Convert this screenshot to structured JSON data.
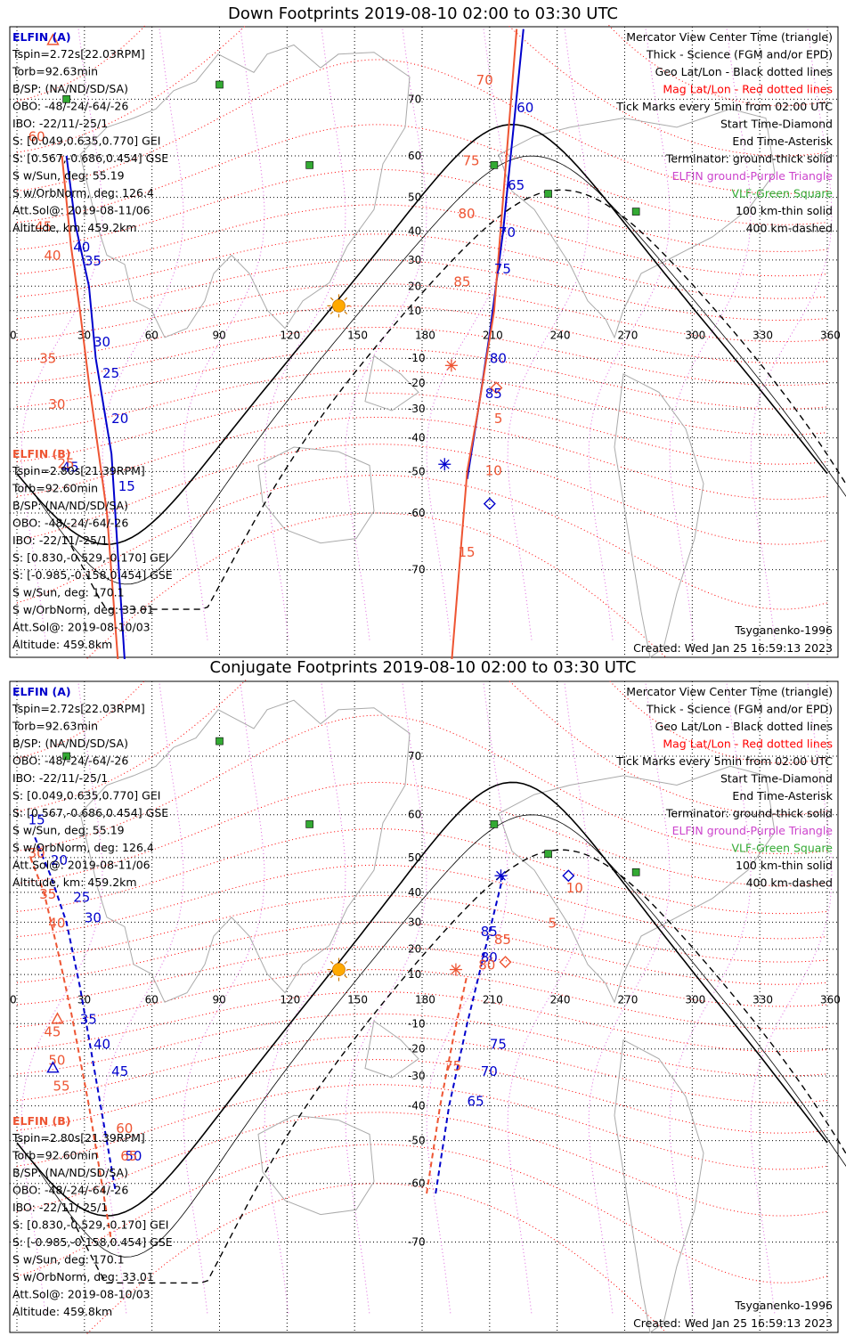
{
  "palette": {
    "spacecraft_a": "#0000cc",
    "spacecraft_b": "#ee5533",
    "mag_grid": "#ff0000",
    "geo_grid": "#000000",
    "elfin_ground": "#cc44cc",
    "vlf_station": "#33aa33",
    "sun": "#ffaa00",
    "terminator": "#000000",
    "coastline": "#aaaaaa"
  },
  "panels": [
    {
      "title": "Down Footprints 2019-08-10 02:00 to 03:30 UTC",
      "legend": [
        {
          "text": "Mercator View Center Time (triangle)",
          "color": "#000000"
        },
        {
          "text": "Thick - Science (FGM and/or EPD)",
          "color": "#000000"
        },
        {
          "text": "Geo Lat/Lon - Black dotted lines",
          "color": "#000000"
        },
        {
          "text": "Mag Lat/Lon - Red dotted lines",
          "color": "#ff0000"
        },
        {
          "text": "Tick Marks every 5min from 02:00 UTC",
          "color": "#000000"
        },
        {
          "text": "Start Time-Diamond",
          "color": "#000000"
        },
        {
          "text": "End Time-Asterisk",
          "color": "#000000"
        },
        {
          "text": "Terminator: ground-thick solid",
          "color": "#000000"
        },
        {
          "text": "ELFIN ground-Purple Triangle",
          "color": "#cc44cc"
        },
        {
          "text": "VLF-Green Square",
          "color": "#33aa33"
        },
        {
          "text": "100 km-thin solid",
          "color": "#000000"
        },
        {
          "text": "400 km-dashed",
          "color": "#000000"
        }
      ],
      "info_a": {
        "name": "ELFIN (A)",
        "lines": [
          "Tspin=2.72s[22.03RPM]",
          "Torb=92.63min",
          "B/SP: (NA/ND/SD/SA)",
          "OBO: -48/-24/-64/-26",
          "IBO: -22/11/-25/1",
          "S: [0.049,0.635,0.770] GEI",
          "S: [0.567,-0.686,0.454] GSE",
          "S w/Sun, deg: 55.19",
          "S w/OrbNorm, deg: 126.4",
          "Att.Sol@: 2019-08-11/06",
          "Altitude, km: 459.2km"
        ]
      },
      "info_b": {
        "name": "ELFIN (B)",
        "lines": [
          "Tspin=2.80s[21.39RPM]",
          "Torb=92.60min",
          "B/SP: (NA/ND/SD/SA)",
          "OBO: -48/-24/-64/-26",
          "IBO: -22/11/-25/1",
          "S: [0.830,-0.529,-0.170] GEI",
          "S: [-0.985,-0.158,0.454] GSE",
          "S w/Sun, deg: 170.1",
          "S w/OrbNorm, deg: 33.01",
          "Att.Sol@: 2019-08-10/03",
          "Altitude: 459.8km"
        ]
      },
      "model": "Tsyganenko-1996",
      "created": "Created: Wed Jan 25 16:59:13 2023",
      "segment_labels_a": [
        "60",
        "65",
        "70",
        "75",
        "80",
        "85",
        "45",
        "40",
        "35",
        "30",
        "25",
        "20",
        "15"
      ],
      "segment_labels_b": [
        "70",
        "75",
        "80",
        "85",
        "5",
        "10",
        "15",
        "60",
        "45",
        "40",
        "35",
        "30",
        "25"
      ]
    },
    {
      "title": "Conjugate Footprints 2019-08-10 02:00 to 03:30 UTC",
      "legend": [
        {
          "text": "Mercator View Center Time (triangle)",
          "color": "#000000"
        },
        {
          "text": "Thick - Science (FGM and/or EPD)",
          "color": "#000000"
        },
        {
          "text": "Geo Lat/Lon - Black dotted lines",
          "color": "#000000"
        },
        {
          "text": "Mag Lat/Lon - Red dotted lines",
          "color": "#ff0000"
        },
        {
          "text": "Tick Marks every 5min from 02:00 UTC",
          "color": "#000000"
        },
        {
          "text": "Start Time-Diamond",
          "color": "#000000"
        },
        {
          "text": "End Time-Asterisk",
          "color": "#000000"
        },
        {
          "text": "Terminator: ground-thick solid",
          "color": "#000000"
        },
        {
          "text": "ELFIN ground-Purple Triangle",
          "color": "#cc44cc"
        },
        {
          "text": "VLF-Green Square",
          "color": "#33aa33"
        },
        {
          "text": "100 km-thin solid",
          "color": "#000000"
        },
        {
          "text": "400 km-dashed",
          "color": "#000000"
        }
      ],
      "info_a": {
        "name": "ELFIN (A)",
        "lines": [
          "Tspin=2.72s[22.03RPM]",
          "Torb=92.63min",
          "B/SP: (NA/ND/SD/SA)",
          "OBO: -48/-24/-64/-26",
          "IBO: -22/11/-25/1",
          "S: [0.049,0.635,0.770] GEI",
          "S: [0.567,-0.686,0.454] GSE",
          "S w/Sun, deg: 55.19",
          "S w/OrbNorm, deg: 126.4",
          "Att.Sol@: 2019-08-11/06",
          "Altitude, km: 459.2km"
        ]
      },
      "info_b": {
        "name": "ELFIN (B)",
        "lines": [
          "Tspin=2.80s[21.39RPM]",
          "Torb=92.60min",
          "B/SP: (NA/ND/SD/SA)",
          "OBO: -48/-24/-64/-26",
          "IBO: -22/11/-25/1",
          "S: [0.830,-0.529,-0.170] GEI",
          "S: [-0.985,-0.158,0.454] GSE",
          "S w/Sun, deg: 170.1",
          "S w/OrbNorm, deg: 33.01",
          "Att.Sol@: 2019-08-10/03",
          "Altitude: 459.8km"
        ]
      },
      "model": "Tsyganenko-1996",
      "created": "Created: Wed Jan 25 16:59:13 2023",
      "segment_labels_a": [
        "85",
        "80",
        "75",
        "70",
        "65",
        "20",
        "25",
        "30",
        "35",
        "40",
        "45",
        "50",
        "15"
      ],
      "segment_labels_b": [
        "80",
        "85",
        "75",
        "10",
        "5",
        "30",
        "35",
        "40",
        "45",
        "50",
        "55",
        "60",
        "65"
      ]
    }
  ],
  "lon_ticks": [
    "0",
    "30",
    "60",
    "90",
    "120",
    "150",
    "180",
    "210",
    "240",
    "270",
    "300",
    "330",
    "360"
  ],
  "lat_ticks": [
    "70",
    "60",
    "50",
    "40",
    "30",
    "20",
    "10",
    "-10",
    "-20",
    "-30",
    "-40",
    "-50",
    "-60",
    "-70"
  ]
}
